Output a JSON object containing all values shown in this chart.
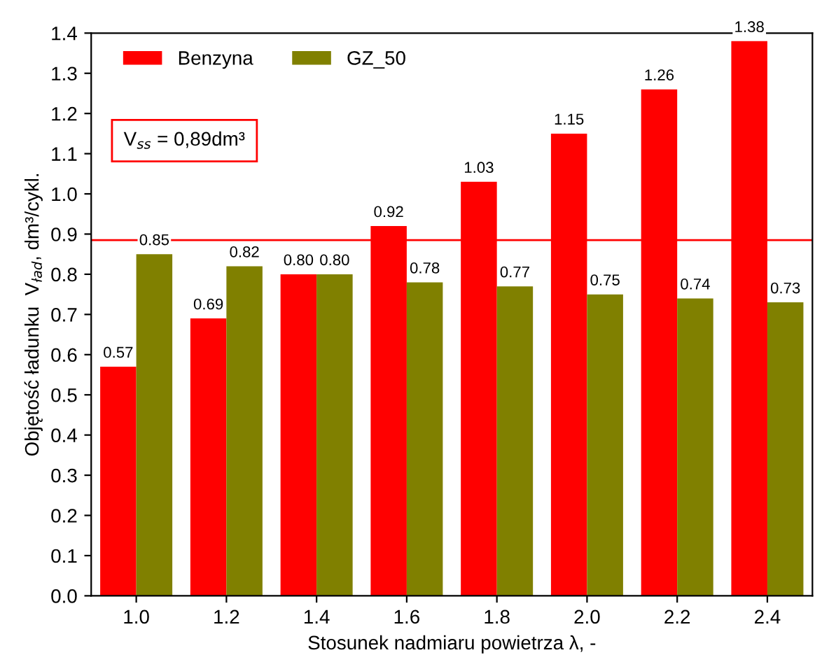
{
  "chart_data": {
    "type": "bar",
    "xlabel": "Stosunek nadmiaru powietrza λ, -",
    "ylabel": "Objętość ładunku  V$_{ład}$, dm³/cykl.",
    "categories": [
      "1.0",
      "1.2",
      "1.4",
      "1.6",
      "1.8",
      "2.0",
      "2.2",
      "2.4"
    ],
    "series": [
      {
        "name": "Benzyna",
        "color": "#ff0000",
        "values": [
          0.57,
          0.69,
          0.8,
          0.92,
          1.03,
          1.15,
          1.26,
          1.38
        ],
        "value_labels": [
          "0.57",
          "0.69",
          "0.80",
          "0.92",
          "1.03",
          "1.15",
          "1.26",
          "1.38"
        ]
      },
      {
        "name": "GZ_50",
        "color": "#808000",
        "values": [
          0.85,
          0.82,
          0.8,
          0.78,
          0.77,
          0.75,
          0.74,
          0.73
        ],
        "value_labels": [
          "0.85",
          "0.82",
          "0.80",
          "0.78",
          "0.77",
          "0.75",
          "0.74",
          "0.73"
        ]
      }
    ],
    "ylim": [
      0,
      1.4
    ],
    "yticks": [
      {
        "value": 0,
        "label": "0.0"
      },
      0.1,
      0.2,
      0.3,
      0.4,
      0.5,
      0.6,
      0.7,
      0.8,
      0.9,
      {
        "value": 1.0,
        "label": "1.0"
      },
      1.1,
      1.2,
      1.3,
      1.4
    ],
    "ref_lines": [
      {
        "axis": "y",
        "value": 0.885,
        "color": "#ff0000"
      }
    ],
    "annotations": [
      "V$_{ss}$ = 0,89dm³"
    ],
    "grid": false,
    "legend": "top left"
  }
}
